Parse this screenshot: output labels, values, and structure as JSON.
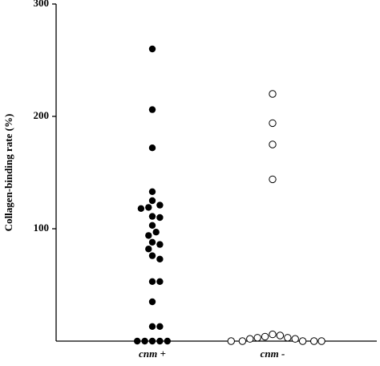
{
  "chart_data": {
    "type": "strip",
    "y_label": "Collagen-binding rate (%)",
    "categories": [
      "cnm +",
      "cnm -"
    ],
    "series": [
      {
        "color": "#000000",
        "marker": "filled",
        "values": [
          260,
          206,
          172,
          133,
          125,
          121,
          119,
          118,
          111,
          110,
          103,
          97,
          94,
          88,
          86,
          82,
          76,
          73,
          53,
          53,
          35,
          13,
          13,
          0,
          0,
          0,
          0,
          0
        ]
      },
      {
        "color": "#000000",
        "marker": "open",
        "values": [
          220,
          194,
          175,
          144,
          6,
          5,
          4,
          3,
          3,
          2,
          2,
          0,
          0,
          0,
          0,
          0
        ]
      }
    ],
    "ylim": [
      0,
      300
    ],
    "yticks": [
      100,
      200,
      300
    ]
  }
}
